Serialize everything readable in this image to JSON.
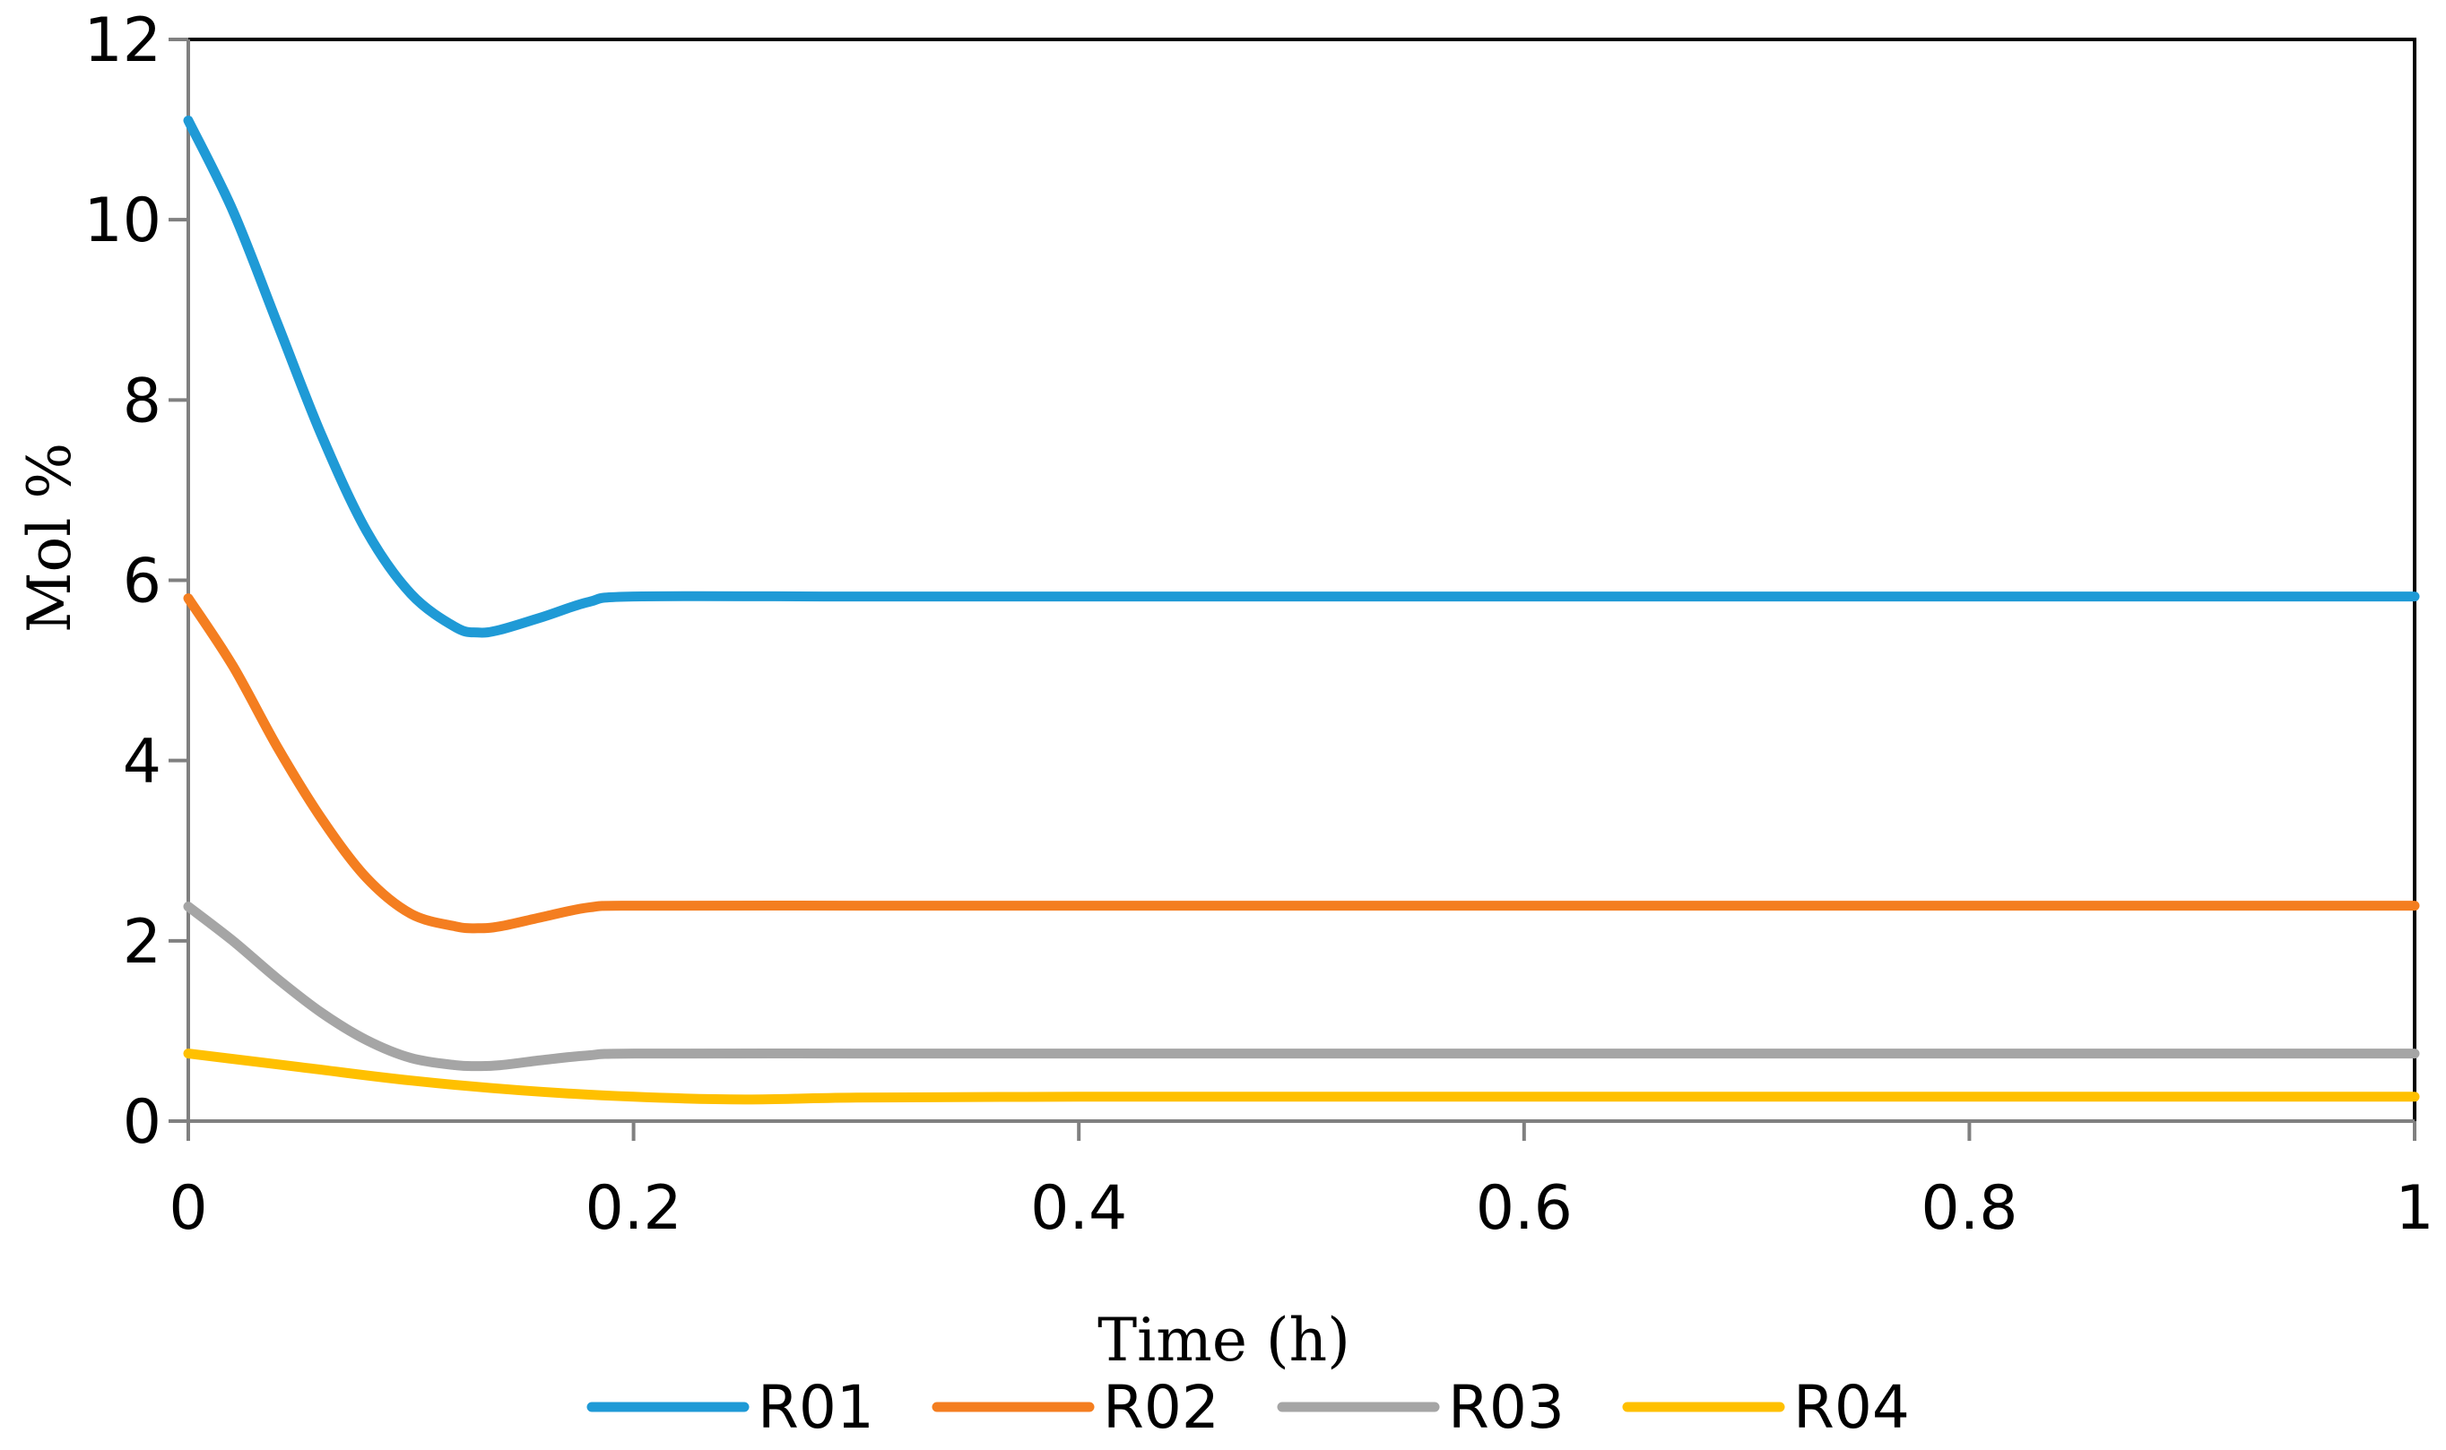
{
  "chart_data": {
    "type": "line",
    "title": "",
    "xlabel": "Time (h)",
    "ylabel": "Mol %",
    "xlim": [
      0,
      1
    ],
    "ylim": [
      0,
      12
    ],
    "xticks": [
      "0",
      "0.2",
      "0.4",
      "0.6",
      "0.8",
      "1"
    ],
    "xtick_values": [
      0,
      0.2,
      0.4,
      0.6,
      0.8,
      1
    ],
    "yticks": [
      "0",
      "2",
      "4",
      "6",
      "8",
      "10",
      "12"
    ],
    "ytick_values": [
      0,
      2,
      4,
      6,
      8,
      10,
      12
    ],
    "grid": false,
    "legend_position": "bottom",
    "series": [
      {
        "name": "R01",
        "color": "#1f9ad6",
        "x": [
          0,
          0.02,
          0.04,
          0.06,
          0.08,
          0.1,
          0.12,
          0.13,
          0.14,
          0.16,
          0.18,
          0.2,
          0.3,
          0.4,
          0.5,
          0.6,
          0.7,
          0.8,
          0.9,
          1
        ],
        "values": [
          11.1,
          10.1,
          8.85,
          7.6,
          6.55,
          5.85,
          5.48,
          5.42,
          5.45,
          5.6,
          5.76,
          5.82,
          5.82,
          5.82,
          5.82,
          5.82,
          5.82,
          5.82,
          5.82,
          5.82
        ]
      },
      {
        "name": "R02",
        "color": "#f47e20",
        "x": [
          0,
          0.02,
          0.04,
          0.06,
          0.08,
          0.1,
          0.12,
          0.13,
          0.14,
          0.16,
          0.18,
          0.2,
          0.3,
          0.4,
          0.5,
          0.6,
          0.7,
          0.8,
          0.9,
          1
        ],
        "values": [
          5.8,
          5.05,
          4.15,
          3.35,
          2.7,
          2.3,
          2.16,
          2.14,
          2.16,
          2.27,
          2.37,
          2.39,
          2.39,
          2.39,
          2.39,
          2.39,
          2.39,
          2.39,
          2.39,
          2.39
        ]
      },
      {
        "name": "R03",
        "color": "#a5a5a5",
        "x": [
          0,
          0.02,
          0.04,
          0.06,
          0.08,
          0.1,
          0.12,
          0.13,
          0.14,
          0.16,
          0.18,
          0.2,
          0.3,
          0.4,
          0.5,
          0.6,
          0.7,
          0.8,
          0.9,
          1
        ],
        "values": [
          2.38,
          2.0,
          1.58,
          1.2,
          0.9,
          0.7,
          0.62,
          0.61,
          0.62,
          0.68,
          0.73,
          0.75,
          0.75,
          0.75,
          0.75,
          0.75,
          0.75,
          0.75,
          0.75,
          0.75
        ]
      },
      {
        "name": "R04",
        "color": "#ffc000",
        "x": [
          0,
          0.05,
          0.1,
          0.15,
          0.2,
          0.25,
          0.3,
          0.4,
          0.5,
          0.6,
          0.7,
          0.8,
          0.9,
          1
        ],
        "values": [
          0.75,
          0.6,
          0.45,
          0.34,
          0.27,
          0.24,
          0.26,
          0.27,
          0.27,
          0.27,
          0.27,
          0.27,
          0.27,
          0.27
        ]
      }
    ]
  }
}
